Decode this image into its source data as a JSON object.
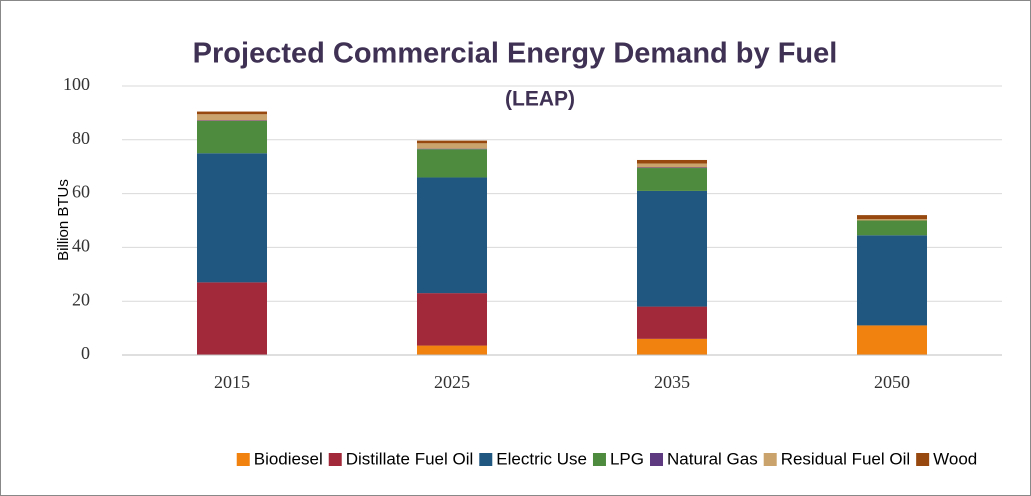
{
  "chart_data": {
    "type": "stacked_bar",
    "title": "Projected Commercial Energy Demand by Fuel",
    "subtitle": "(LEAP)",
    "y_label": "Billion BTUs",
    "categories": [
      "2015",
      "2025",
      "2035",
      "2050"
    ],
    "series": [
      {
        "name": "Biodiesel",
        "color": "#f2820f",
        "values": [
          0,
          3.5,
          6,
          11
        ]
      },
      {
        "name": "Distillate Fuel Oil",
        "color": "#a1293a",
        "values": [
          27,
          19.5,
          12,
          0
        ]
      },
      {
        "name": "Electric Use",
        "color": "#1f5780",
        "values": [
          48,
          43,
          43,
          33.5
        ]
      },
      {
        "name": "LPG",
        "color": "#4e8b3e",
        "values": [
          12,
          10.5,
          8.5,
          5.5
        ]
      },
      {
        "name": "Natural Gas",
        "color": "#5e3a80",
        "values": [
          0.2,
          0.2,
          0.2,
          0
        ]
      },
      {
        "name": "Residual Fuel Oil",
        "color": "#c9a36b",
        "values": [
          2.3,
          2,
          1.5,
          0.5
        ]
      },
      {
        "name": "Wood",
        "color": "#96480e",
        "values": [
          1,
          1,
          1.3,
          1.5
        ]
      }
    ],
    "ylim": [
      0,
      100
    ],
    "yticks": [
      0,
      20,
      40,
      60,
      80,
      100
    ],
    "grid": true,
    "legend": "bottom"
  }
}
